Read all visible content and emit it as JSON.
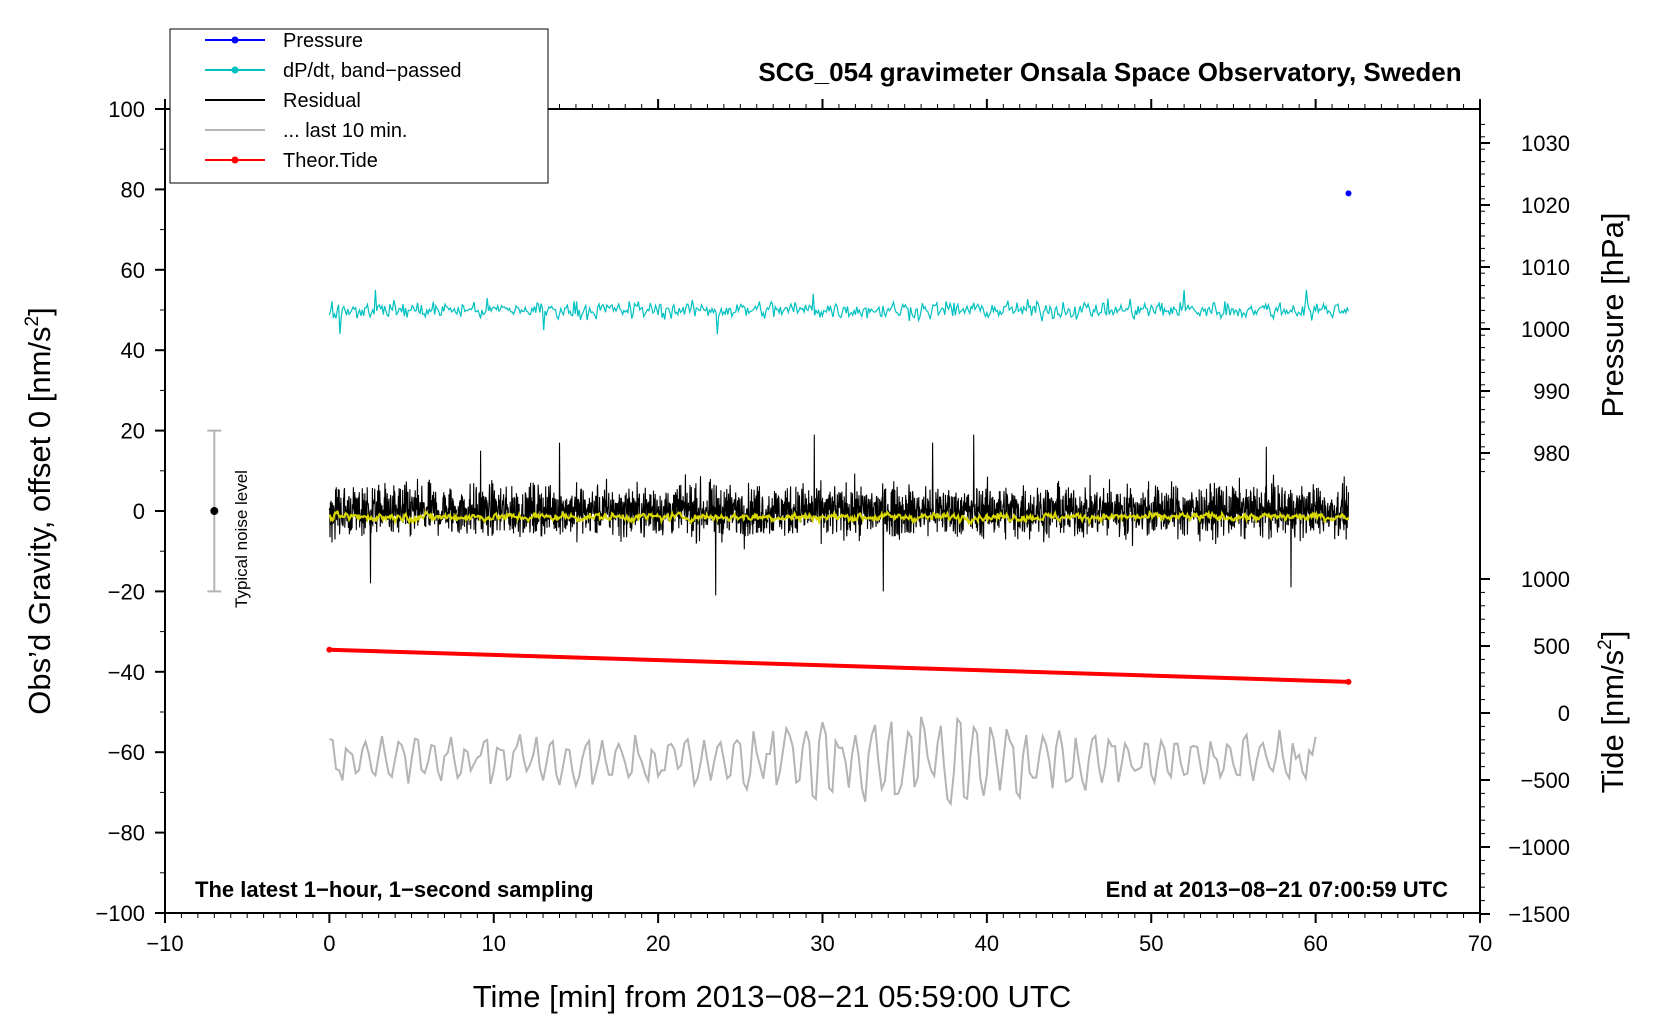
{
  "chart_data": {
    "type": "line",
    "title": "SCG_054 gravimeter Onsala Space Observatory, Sweden",
    "xlabel": "Time [min] from 2013−08−21 05:59:00 UTC",
    "ylabel_main": "Obs’d Gravity, offset 0 [nm/s",
    "ylabel_main_sup": "2",
    "ylabel_main_close": "]",
    "ylabel_pressure": "Pressure [hPa]",
    "ylabel_tide": "Tide [nm/s",
    "ylabel_tide_sup": "2",
    "ylabel_tide_close": "]",
    "xlim": [
      -10,
      70
    ],
    "ylim": [
      -100,
      100
    ],
    "x_ticks": [
      -10,
      0,
      10,
      20,
      30,
      40,
      50,
      60,
      70
    ],
    "x_tick_labels": [
      "−10",
      "0",
      "10",
      "20",
      "30",
      "40",
      "50",
      "60",
      "70"
    ],
    "y_ticks": [
      -100,
      -80,
      -60,
      -40,
      -20,
      0,
      20,
      40,
      60,
      80,
      100
    ],
    "y_tick_labels": [
      "−100",
      "−80",
      "−60",
      "−40",
      "−20",
      "0",
      "20",
      "40",
      "60",
      "80",
      "100"
    ],
    "pressure_axis": {
      "ticks": [
        980,
        990,
        1000,
        1010,
        1020,
        1030
      ],
      "tick_labels": [
        "980",
        "990",
        "1000",
        "1010",
        "1020",
        "1030"
      ]
    },
    "tide_axis": {
      "ticks": [
        -1500,
        -1000,
        -500,
        0,
        500,
        1000
      ],
      "tick_labels": [
        "−1500",
        "−1000",
        "−500",
        "0",
        "500",
        "1000"
      ]
    },
    "legend": [
      {
        "label": "Pressure",
        "color": "#0000ff",
        "marker": true
      },
      {
        "label": "dP/dt, band−passed",
        "color": "#00c0c0",
        "marker": true
      },
      {
        "label": "Residual",
        "color": "#000000",
        "marker": false
      },
      {
        "label": "... last 10 min.",
        "color": "#b4b4b4",
        "marker": false
      },
      {
        "label": "Theor.Tide",
        "color": "#ff0000",
        "marker": true
      }
    ],
    "annotations": {
      "left_note": "The latest 1−hour, 1−second sampling",
      "right_note": "End at 2013−08−21 07:00:59 UTC",
      "noise_label": "Typical noise level"
    },
    "noise_bar": {
      "x": -7,
      "center": 0,
      "low": -20,
      "high": 20
    },
    "series": [
      {
        "name": "Pressure",
        "color": "#0000ff",
        "x_range": [
          0,
          62
        ],
        "level": 79,
        "jitter": 0.35
      },
      {
        "name": "dP/dt, band−passed",
        "color": "#00c0c0",
        "x_range": [
          0,
          62
        ],
        "level": 50,
        "amplitude": 1.8,
        "spikes": [
          [
            0.6,
            44
          ],
          [
            2.8,
            55
          ],
          [
            13,
            45
          ],
          [
            23.6,
            44
          ],
          [
            29.4,
            54
          ],
          [
            52,
            40
          ],
          [
            52,
            55
          ],
          [
            59.4,
            55
          ]
        ]
      },
      {
        "name": "Residual",
        "color": "#000000",
        "x_range": [
          0,
          62
        ],
        "level": 0,
        "amplitude": 4.5,
        "spikes": [
          [
            23.5,
            -21
          ],
          [
            29.5,
            19
          ],
          [
            39.2,
            19
          ],
          [
            9.2,
            15
          ],
          [
            14,
            17
          ],
          [
            2.5,
            -18
          ],
          [
            36.7,
            17
          ],
          [
            57,
            16
          ],
          [
            33.7,
            -20
          ],
          [
            58.5,
            -19
          ]
        ]
      },
      {
        "name": "Yellow smoothed residual",
        "color": "#d8d800",
        "x_range": [
          0,
          62
        ],
        "level": -1.5,
        "amplitude": 1.3
      },
      {
        "name": "Theor.Tide",
        "color": "#ff0000",
        "x": [
          0,
          62
        ],
        "y": [
          -34.5,
          -42.5
        ]
      },
      {
        "name": "... last 10 min.",
        "color": "#b4b4b4",
        "x_range": [
          0,
          60
        ],
        "level": -62,
        "amplitude": 5,
        "min": -78,
        "max": -45
      }
    ]
  }
}
